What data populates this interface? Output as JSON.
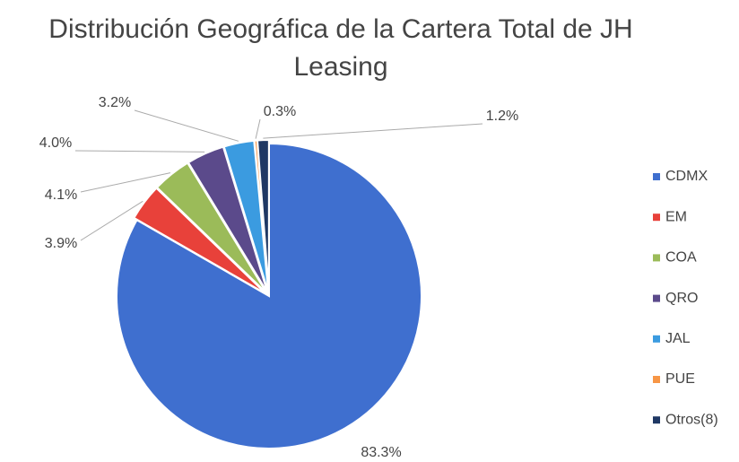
{
  "chart_data": {
    "type": "pie",
    "title": "Distribución Geográfica de la Cartera Total de JH Leasing",
    "categories": [
      "CDMX",
      "EM",
      "COA",
      "QRO",
      "JAL",
      "PUE",
      "Otros(8)"
    ],
    "values": [
      83.3,
      3.9,
      4.1,
      4.0,
      3.2,
      0.3,
      1.2
    ],
    "value_labels": [
      "83.3%",
      "3.9%",
      "4.1%",
      "4.0%",
      "3.2%",
      "0.3%",
      "1.2%"
    ],
    "colors": [
      "#3f6fcf",
      "#e8413a",
      "#9bbb59",
      "#5b4a8b",
      "#3b9be0",
      "#f79646",
      "#1f3864"
    ],
    "legend": "right"
  }
}
